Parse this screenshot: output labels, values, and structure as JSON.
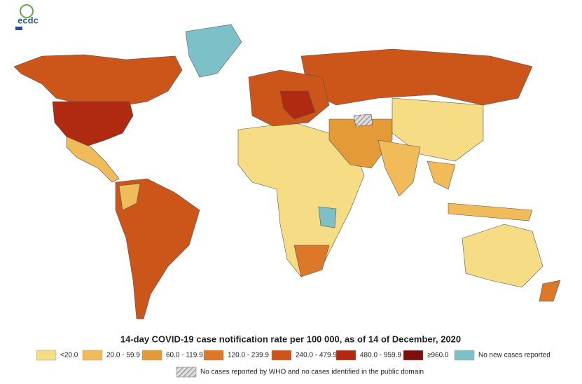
{
  "logo": "ecdc",
  "title": "14-day COVID-19 case notification rate per 100 000,  as of 14 of December, 2020",
  "legend": [
    {
      "label": "<20.0",
      "color": "#f5dc85"
    },
    {
      "label": "20.0 - 59.9",
      "color": "#f0bb58"
    },
    {
      "label": "60.0 - 119.9",
      "color": "#e59a38"
    },
    {
      "label": "120.0 - 239.9",
      "color": "#dc7828"
    },
    {
      "label": "240.0 - 479.9",
      "color": "#cc5519"
    },
    {
      "label": "480.0 - 959.9",
      "color": "#b02a12"
    },
    {
      "label": "≥960.0",
      "color": "#7d0f0a"
    },
    {
      "label": "No new cases reported",
      "color": "#7ec0c8"
    }
  ],
  "note": "No cases reported by WHO and no cases identified in the public domain"
}
